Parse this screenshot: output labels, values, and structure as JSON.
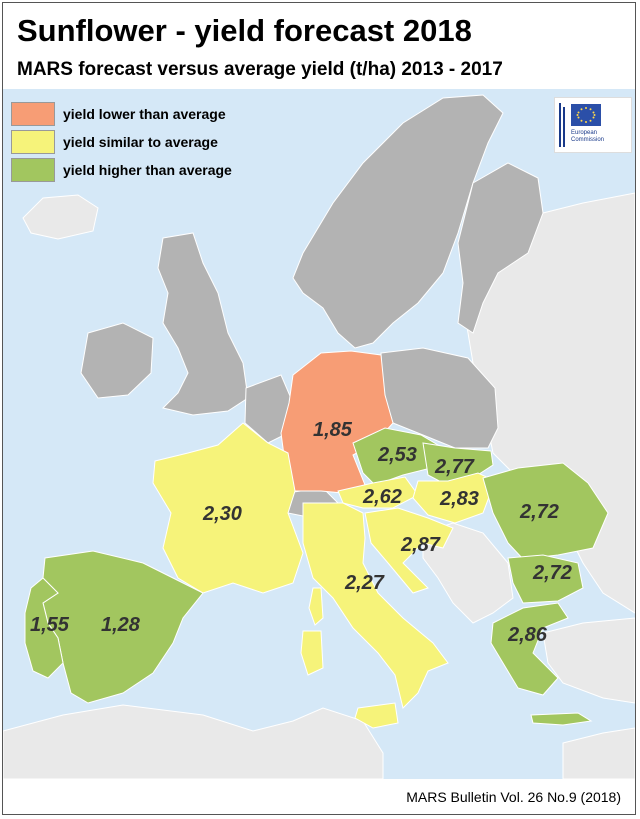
{
  "title": "Sunflower - yield forecast 2018",
  "subtitle": "MARS forecast versus average yield (t/ha) 2013 - 2017",
  "legend": [
    {
      "label": "yield lower than average",
      "color": "#f79d75"
    },
    {
      "label": "yield similar to average",
      "color": "#f6f37a"
    },
    {
      "label": "yield higher than average",
      "color": "#a2c65f"
    }
  ],
  "colors": {
    "sea": "#d5e8f7",
    "nonEU": "#e9e9e9",
    "noData": "#b3b3b3",
    "lower": "#f79d75",
    "similar": "#f6f37a",
    "higher": "#a2c65f",
    "valueText": "#333333"
  },
  "logo": {
    "line1": "European",
    "line2": "Commission"
  },
  "values": {
    "germany": "1,85",
    "czechia": "2,53",
    "slovakia": "2,77",
    "france": "2,30",
    "austria": "2,62",
    "hungary": "2,83",
    "romania": "2,72",
    "croatia": "2,87",
    "italy": "2,27",
    "bulgaria": "2,72",
    "greece": "2,86",
    "portugal": "1,55",
    "spain": "1,28"
  },
  "footer": "MARS Bulletin Vol. 26 No.9 (2018)"
}
